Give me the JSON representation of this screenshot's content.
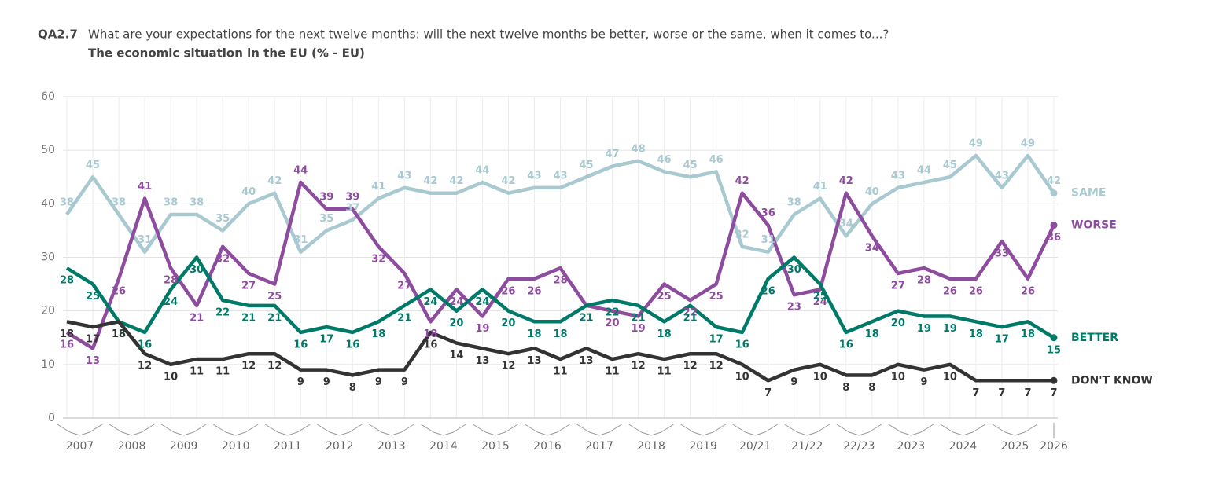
{
  "chart_data": {
    "type": "line",
    "title_code": "QA2.7",
    "title": "What are your expectations for the next twelve months: will the next twelve months be better, worse or the same, when it comes to...?",
    "subtitle": "The economic situation in the EU (% - EU)",
    "categories": [
      "2007",
      null,
      "2008",
      null,
      "2009",
      null,
      "2010",
      null,
      "2011",
      null,
      "2012",
      null,
      "2013",
      null,
      "2014",
      null,
      "2015",
      null,
      "2016",
      null,
      "2017",
      null,
      "2018",
      null,
      "2019",
      null,
      "20/21",
      null,
      "21/22",
      null,
      "22/23",
      null,
      "2023",
      null,
      "2024",
      null,
      "2025",
      null,
      "2026"
    ],
    "series": [
      {
        "name": "SAME",
        "color": "#a9c9d1",
        "values": [
          38,
          45,
          38,
          31,
          38,
          38,
          35,
          40,
          42,
          31,
          35,
          37,
          41,
          43,
          42,
          42,
          44,
          42,
          43,
          43,
          45,
          47,
          48,
          46,
          45,
          46,
          32,
          31,
          38,
          41,
          34,
          40,
          43,
          44,
          45,
          49,
          43,
          49,
          42
        ]
      },
      {
        "name": "WORSE",
        "color": "#8e4c9e",
        "values": [
          16,
          13,
          26,
          41,
          28,
          21,
          32,
          27,
          25,
          44,
          39,
          39,
          32,
          27,
          18,
          24,
          19,
          26,
          26,
          28,
          21,
          20,
          19,
          25,
          22,
          25,
          42,
          36,
          23,
          24,
          42,
          34,
          27,
          28,
          26,
          26,
          33,
          26,
          36
        ]
      },
      {
        "name": "BETTER",
        "color": "#007a68",
        "values": [
          28,
          25,
          18,
          16,
          24,
          30,
          22,
          21,
          21,
          16,
          17,
          16,
          18,
          21,
          24,
          20,
          24,
          20,
          18,
          18,
          21,
          22,
          21,
          18,
          21,
          17,
          16,
          26,
          30,
          25,
          16,
          18,
          20,
          19,
          19,
          18,
          17,
          18,
          15
        ]
      },
      {
        "name": "DON'T KNOW",
        "color": "#333333",
        "values": [
          18,
          17,
          18,
          12,
          10,
          11,
          11,
          12,
          12,
          9,
          9,
          8,
          9,
          9,
          16,
          14,
          13,
          12,
          13,
          11,
          13,
          11,
          12,
          11,
          12,
          12,
          10,
          7,
          9,
          10,
          8,
          8,
          10,
          9,
          10,
          7,
          7,
          7,
          7
        ]
      }
    ],
    "ylim": [
      0,
      60
    ],
    "yticks": [
      0,
      10,
      20,
      30,
      40,
      50,
      60
    ],
    "grid": true
  }
}
